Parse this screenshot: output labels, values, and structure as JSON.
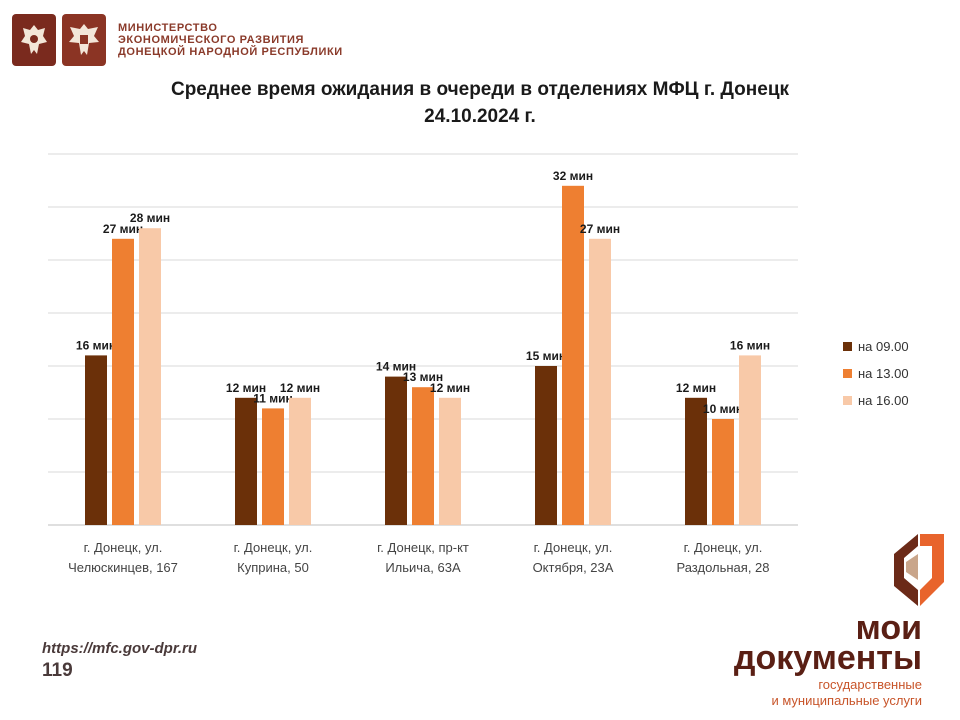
{
  "header": {
    "ministry_lines": [
      "МИНИСТЕРСТВО",
      "ЭКОНОМИЧЕСКОГО РАЗВИТИЯ",
      "ДОНЕЦКОЙ НАРОДНОЙ РЕСПУБЛИКИ"
    ],
    "emblem_icons": [
      "coat-of-arms-icon",
      "coat-of-arms-icon"
    ]
  },
  "footer": {
    "url": "https://mfc.gov-dpr.ru",
    "page_number": "119",
    "brand_line1": "мои",
    "brand_line2": "документы",
    "brand_sub1": "государственные",
    "brand_sub2": "и муниципальные услуги",
    "brand_icon": "moi-dokumenty-logo-icon"
  },
  "colors": {
    "series": [
      "#6b3009",
      "#ee7f31",
      "#f8c9a8"
    ],
    "grid": "#d9d9d9",
    "brand_dark": "#5a1f14",
    "brand_orange": "#e8642c"
  },
  "chart_data": {
    "type": "bar",
    "title_line1": "Среднее время ожидания в очереди в отделениях МФЦ г. Донецк",
    "title_line2": "24.10.2024 г.",
    "categories": [
      [
        "г. Донецк, ул.",
        "Челюскинцев, 167"
      ],
      [
        "г. Донецк, ул.",
        "Куприна, 50"
      ],
      [
        "г. Донецк, пр-кт",
        "Ильича, 63А"
      ],
      [
        "г. Донецк, ул.",
        "Октября, 23А"
      ],
      [
        "г. Донецк, ул.",
        "Раздольная, 28"
      ]
    ],
    "series": [
      {
        "name": "на 09.00",
        "values": [
          16,
          12,
          14,
          15,
          12
        ],
        "labels": [
          "16 мин",
          "12 мин",
          "14 мин",
          "15 мин",
          "12 мин"
        ]
      },
      {
        "name": "на 13.00",
        "values": [
          27,
          11,
          13,
          32,
          10
        ],
        "labels": [
          "27 мин",
          "11 мин",
          "13 мин",
          "32 мин",
          "10 мин"
        ]
      },
      {
        "name": "на 16.00",
        "values": [
          28,
          12,
          12,
          27,
          16
        ],
        "labels": [
          "28 мин",
          "12 мин",
          "12 мин",
          "27 мин",
          "16 мин"
        ]
      }
    ],
    "ylim": [
      0,
      35
    ],
    "grid": true,
    "legend": "right"
  }
}
